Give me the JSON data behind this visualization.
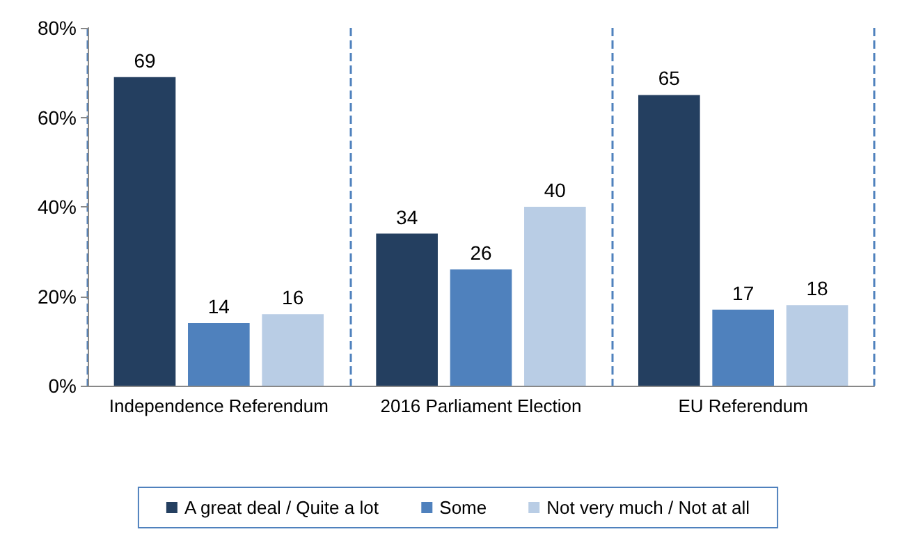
{
  "chart_data": {
    "type": "bar",
    "categories": [
      "Independence Referendum",
      "2016 Parliament Election",
      "EU Referendum"
    ],
    "series": [
      {
        "name": "A great deal / Quite a lot",
        "color": "#243f60",
        "values": [
          69,
          34,
          65
        ]
      },
      {
        "name": "Some",
        "color": "#4f81bd",
        "values": [
          14,
          26,
          17
        ]
      },
      {
        "name": "Not very much / Not at all",
        "color": "#b9cde5",
        "values": [
          16,
          40,
          18
        ]
      }
    ],
    "ylim": [
      0,
      80
    ],
    "yticks": [
      {
        "value": 0,
        "label": "0%"
      },
      {
        "value": 20,
        "label": "20%"
      },
      {
        "value": 40,
        "label": "40%"
      },
      {
        "value": 60,
        "label": "60%"
      },
      {
        "value": 80,
        "label": "80%"
      }
    ],
    "grid": "x",
    "legend": "bottom",
    "data_labels": true
  }
}
